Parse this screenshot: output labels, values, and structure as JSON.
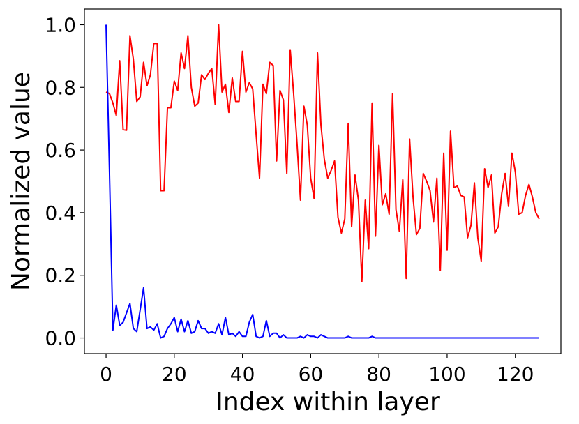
{
  "chart_data": {
    "type": "line",
    "title": "",
    "xlabel": "Index within layer",
    "ylabel": "Normalized value",
    "xlim": [
      -6.35,
      133.35
    ],
    "ylim": [
      -0.05,
      1.05
    ],
    "xticks": [
      0,
      20,
      40,
      60,
      80,
      100,
      120
    ],
    "xtick_labels": [
      "0",
      "20",
      "40",
      "60",
      "80",
      "100",
      "120"
    ],
    "yticks": [
      0.0,
      0.2,
      0.4,
      0.6,
      0.8,
      1.0
    ],
    "ytick_labels": [
      "0.0",
      "0.2",
      "0.4",
      "0.6",
      "0.8",
      "1.0"
    ],
    "grid": false,
    "legend": "none",
    "x": [
      0,
      1,
      2,
      3,
      4,
      5,
      6,
      7,
      8,
      9,
      10,
      11,
      12,
      13,
      14,
      15,
      16,
      17,
      18,
      19,
      20,
      21,
      22,
      23,
      24,
      25,
      26,
      27,
      28,
      29,
      30,
      31,
      32,
      33,
      34,
      35,
      36,
      37,
      38,
      39,
      40,
      41,
      42,
      43,
      44,
      45,
      46,
      47,
      48,
      49,
      50,
      51,
      52,
      53,
      54,
      55,
      56,
      57,
      58,
      59,
      60,
      61,
      62,
      63,
      64,
      65,
      66,
      67,
      68,
      69,
      70,
      71,
      72,
      73,
      74,
      75,
      76,
      77,
      78,
      79,
      80,
      81,
      82,
      83,
      84,
      85,
      86,
      87,
      88,
      89,
      90,
      91,
      92,
      93,
      94,
      95,
      96,
      97,
      98,
      99,
      100,
      101,
      102,
      103,
      104,
      105,
      106,
      107,
      108,
      109,
      110,
      111,
      112,
      113,
      114,
      115,
      116,
      117,
      118,
      119,
      120,
      121,
      122,
      123,
      124,
      125,
      126,
      127
    ],
    "series": [
      {
        "color": "#ff0000",
        "values": [
          0.785,
          0.78,
          0.75,
          0.71,
          0.885,
          0.665,
          0.663,
          0.965,
          0.89,
          0.755,
          0.77,
          0.88,
          0.805,
          0.84,
          0.94,
          0.94,
          0.47,
          0.47,
          0.735,
          0.735,
          0.82,
          0.79,
          0.91,
          0.86,
          0.965,
          0.8,
          0.74,
          0.75,
          0.84,
          0.825,
          0.845,
          0.86,
          0.745,
          1.0,
          0.785,
          0.81,
          0.72,
          0.83,
          0.755,
          0.755,
          0.915,
          0.785,
          0.815,
          0.795,
          0.65,
          0.51,
          0.81,
          0.78,
          0.88,
          0.87,
          0.565,
          0.79,
          0.76,
          0.525,
          0.92,
          0.78,
          0.62,
          0.44,
          0.74,
          0.68,
          0.51,
          0.445,
          0.91,
          0.68,
          0.57,
          0.51,
          0.535,
          0.565,
          0.385,
          0.335,
          0.38,
          0.685,
          0.355,
          0.52,
          0.44,
          0.18,
          0.44,
          0.285,
          0.75,
          0.325,
          0.615,
          0.425,
          0.46,
          0.395,
          0.78,
          0.41,
          0.34,
          0.505,
          0.19,
          0.635,
          0.45,
          0.33,
          0.35,
          0.525,
          0.5,
          0.47,
          0.37,
          0.51,
          0.215,
          0.59,
          0.28,
          0.66,
          0.48,
          0.485,
          0.455,
          0.45,
          0.32,
          0.36,
          0.495,
          0.32,
          0.245,
          0.54,
          0.48,
          0.52,
          0.335,
          0.355,
          0.46,
          0.525,
          0.42,
          0.59,
          0.53,
          0.395,
          0.4,
          0.455,
          0.49,
          0.45,
          0.4,
          0.38
        ]
      },
      {
        "color": "#0000ff",
        "values": [
          1.0,
          0.53,
          0.025,
          0.105,
          0.04,
          0.05,
          0.08,
          0.11,
          0.03,
          0.02,
          0.09,
          0.16,
          0.03,
          0.035,
          0.025,
          0.045,
          0.0,
          0.005,
          0.03,
          0.045,
          0.065,
          0.02,
          0.06,
          0.02,
          0.055,
          0.015,
          0.02,
          0.055,
          0.03,
          0.03,
          0.015,
          0.02,
          0.015,
          0.045,
          0.01,
          0.065,
          0.01,
          0.015,
          0.005,
          0.02,
          0.005,
          0.005,
          0.05,
          0.075,
          0.005,
          0.0,
          0.005,
          0.055,
          0.005,
          0.015,
          0.015,
          0.0,
          0.01,
          0.0,
          0.0,
          0.0,
          0.0,
          0.005,
          0.0,
          0.01,
          0.005,
          0.005,
          0.0,
          0.01,
          0.005,
          0.0,
          0.0,
          0.0,
          0.0,
          0.0,
          0.0,
          0.005,
          0.0,
          0.0,
          0.0,
          0.0,
          0.0,
          0.0,
          0.005,
          0.0,
          0.0,
          0.0,
          0.0,
          0.0,
          0.0,
          0.0,
          0.0,
          0.0,
          0.0,
          0.0,
          0.0,
          0.0,
          0.0,
          0.0,
          0.0,
          0.0,
          0.0,
          0.0,
          0.0,
          0.0,
          0.0,
          0.0,
          0.0,
          0.0,
          0.0,
          0.0,
          0.0,
          0.0,
          0.0,
          0.0,
          0.0,
          0.0,
          0.0,
          0.0,
          0.0,
          0.0,
          0.0,
          0.0,
          0.0,
          0.0,
          0.0,
          0.0,
          0.0,
          0.0,
          0.0,
          0.0,
          0.0,
          0.0
        ]
      }
    ]
  }
}
